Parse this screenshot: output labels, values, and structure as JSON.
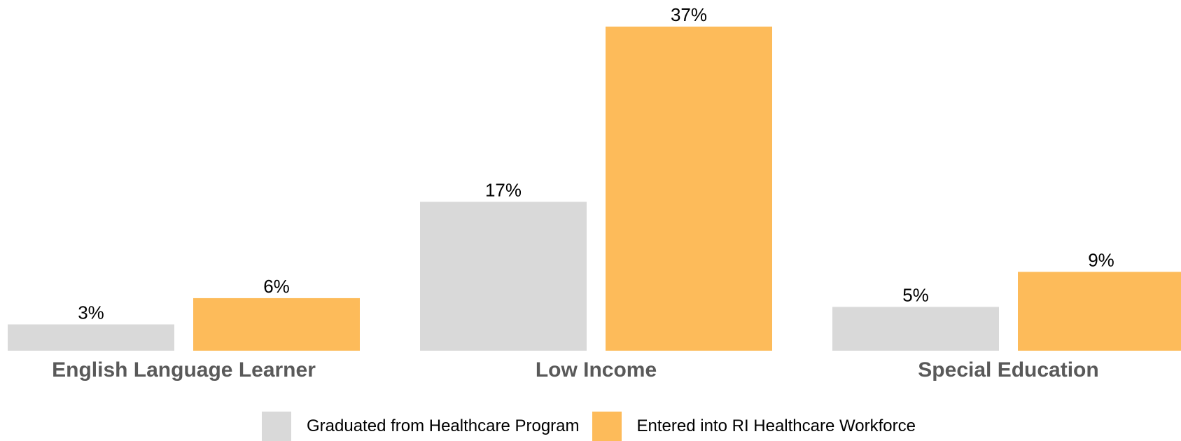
{
  "chart_data": {
    "type": "bar",
    "categories": [
      "English Language Learner",
      "Low Income",
      "Special Education"
    ],
    "series": [
      {
        "name": "Graduated from Healthcare Program",
        "values": [
          3,
          17,
          5
        ],
        "value_labels": [
          "3%",
          "17%",
          "5%"
        ],
        "color": "#d9d9d9"
      },
      {
        "name": "Entered into RI Healthcare Workforce",
        "values": [
          6,
          37,
          9
        ],
        "value_labels": [
          "6%",
          "37%",
          "9%"
        ],
        "color": "#fdbb5a"
      }
    ],
    "ylim": [
      0,
      37
    ],
    "grid": false,
    "legend": "bottom",
    "title": "",
    "xlabel": "",
    "ylabel": ""
  },
  "legend": {
    "items": [
      {
        "label": "Graduated from Healthcare Program",
        "color": "#d9d9d9"
      },
      {
        "label": "Entered into RI Healthcare Workforce",
        "color": "#fdbb5a"
      }
    ]
  }
}
